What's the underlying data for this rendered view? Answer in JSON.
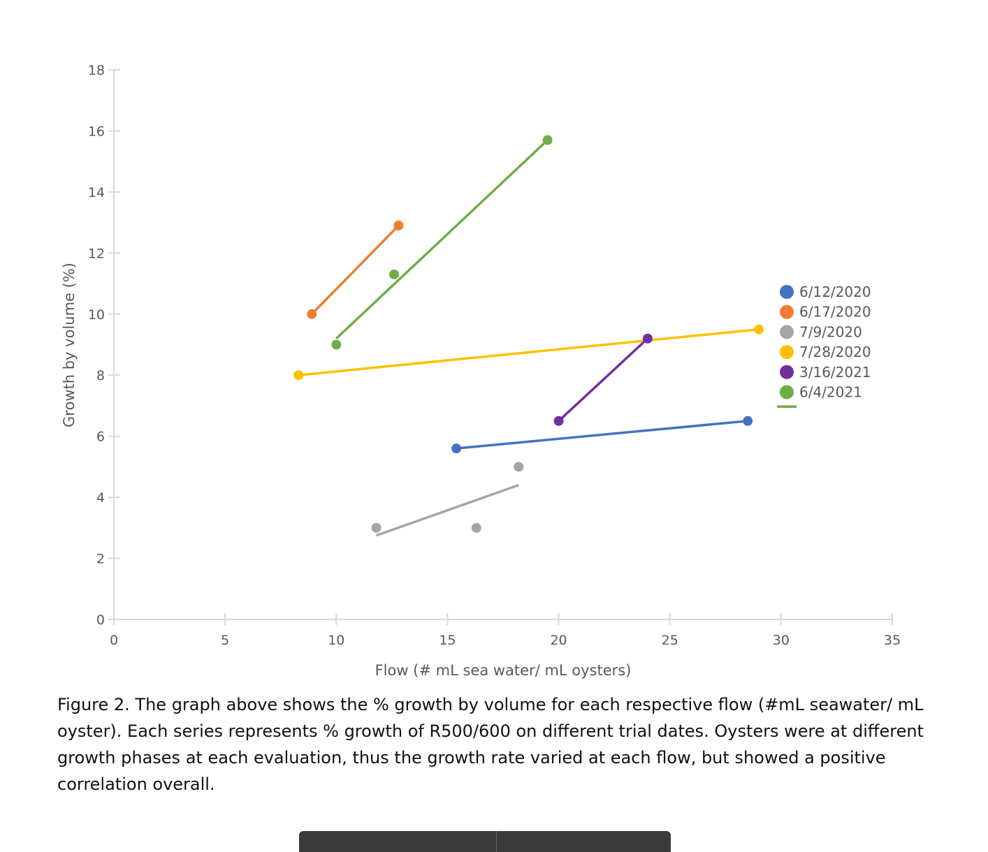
{
  "chart_data": {
    "type": "scatter",
    "title": "",
    "xlabel": "Flow (# mL sea water/ mL oysters)",
    "ylabel": "Growth by volume (%)",
    "xlim": [
      0,
      35
    ],
    "ylim": [
      0,
      18
    ],
    "xticks": [
      0,
      5,
      10,
      15,
      20,
      25,
      30,
      35
    ],
    "yticks": [
      0,
      2,
      4,
      6,
      8,
      10,
      12,
      14,
      16,
      18
    ],
    "grid": false,
    "legend_position": "right",
    "series": [
      {
        "name": "6/12/2020",
        "color": "#4472c4",
        "points": [
          [
            15.4,
            5.6
          ],
          [
            28.5,
            6.5
          ]
        ],
        "trendline": [
          [
            15.4,
            5.6
          ],
          [
            28.5,
            6.5
          ]
        ]
      },
      {
        "name": "6/17/2020",
        "color": "#ed7d31",
        "points": [
          [
            8.9,
            10.0
          ],
          [
            12.8,
            12.9
          ]
        ],
        "trendline": [
          [
            8.9,
            10.0
          ],
          [
            12.8,
            12.9
          ]
        ]
      },
      {
        "name": "7/9/2020",
        "color": "#a5a5a5",
        "points": [
          [
            11.8,
            3.0
          ],
          [
            16.3,
            3.0
          ],
          [
            18.2,
            5.0
          ]
        ],
        "trendline": [
          [
            11.8,
            2.75
          ],
          [
            18.2,
            4.4
          ]
        ]
      },
      {
        "name": "7/28/2020",
        "color": "#ffc000",
        "points": [
          [
            8.3,
            8.0
          ],
          [
            29.0,
            9.5
          ]
        ],
        "trendline": [
          [
            8.3,
            8.0
          ],
          [
            29.0,
            9.5
          ]
        ]
      },
      {
        "name": "3/16/2021",
        "color": "#7030a0",
        "points": [
          [
            20.0,
            6.5
          ],
          [
            24.0,
            9.2
          ]
        ],
        "trendline": [
          [
            20.0,
            6.5
          ],
          [
            24.0,
            9.2
          ]
        ]
      },
      {
        "name": "6/4/2021",
        "color": "#70ad47",
        "points": [
          [
            10.0,
            9.0
          ],
          [
            12.6,
            11.3
          ],
          [
            19.5,
            15.7
          ]
        ],
        "trendline": [
          [
            10.0,
            9.2
          ],
          [
            19.5,
            15.7
          ]
        ]
      }
    ]
  },
  "caption": "Figure 2. The graph above shows the % growth by volume for each respective flow (#mL seawater/ mL oyster). Each series represents % growth of R500/600 on different trial dates. Oysters were at different growth phases at each evaluation, thus the growth rate varied at each flow, but showed a positive correlation overall.",
  "colors": {
    "axis": "#d9d9d9",
    "text": "#595959",
    "caption_text": "#111111",
    "bottom_bar": "#3a3a3a"
  }
}
